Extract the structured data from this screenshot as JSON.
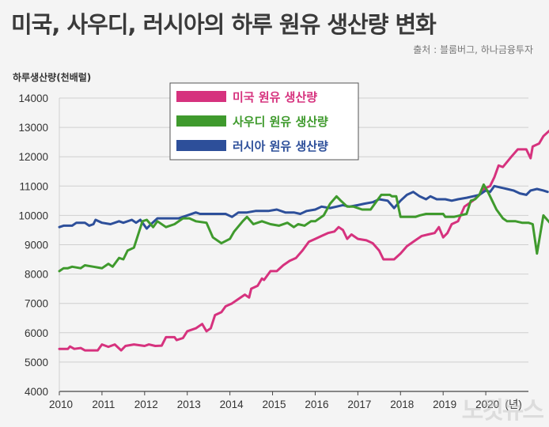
{
  "title": "미국, 사우디, 러시아의 하루 원유 생산량 변화",
  "source": "출처 : 블룸버그, 하나금융투자",
  "watermark": "노컷뉴스",
  "colors": {
    "us": "#d6327e",
    "saudi": "#3f9a2d",
    "russia": "#2d4f9a"
  },
  "chart_data": {
    "type": "line",
    "title": "미국, 사우디, 러시아의 하루 원유 생산량 변화",
    "ylabel": "하루생산량(천배럴)",
    "xlabel": "",
    "x_unit": "(년)",
    "ylim": [
      4000,
      14000
    ],
    "xlim": [
      2010,
      2021
    ],
    "yticks": [
      4000,
      5000,
      6000,
      7000,
      8000,
      9000,
      10000,
      11000,
      12000,
      13000,
      14000
    ],
    "xticks": [
      2010,
      2011,
      2012,
      2013,
      2014,
      2015,
      2016,
      2017,
      2018,
      2019,
      2020
    ],
    "legend": "top-left",
    "grid": "horizontal",
    "series": [
      {
        "name": "미국 원유 생산량",
        "color": "#d6327e",
        "points": [
          [
            2010.0,
            5450
          ],
          [
            2010.2,
            5450
          ],
          [
            2010.25,
            5530
          ],
          [
            2010.35,
            5450
          ],
          [
            2010.5,
            5480
          ],
          [
            2010.6,
            5400
          ],
          [
            2010.9,
            5400
          ],
          [
            2011.0,
            5600
          ],
          [
            2011.15,
            5520
          ],
          [
            2011.3,
            5600
          ],
          [
            2011.45,
            5400
          ],
          [
            2011.55,
            5550
          ],
          [
            2011.75,
            5600
          ],
          [
            2012.0,
            5550
          ],
          [
            2012.1,
            5600
          ],
          [
            2012.25,
            5550
          ],
          [
            2012.4,
            5560
          ],
          [
            2012.5,
            5850
          ],
          [
            2012.7,
            5850
          ],
          [
            2012.75,
            5750
          ],
          [
            2012.9,
            5820
          ],
          [
            2013.0,
            6050
          ],
          [
            2013.2,
            6150
          ],
          [
            2013.35,
            6300
          ],
          [
            2013.45,
            6050
          ],
          [
            2013.55,
            6150
          ],
          [
            2013.65,
            6600
          ],
          [
            2013.8,
            6700
          ],
          [
            2013.9,
            6900
          ],
          [
            2014.05,
            7000
          ],
          [
            2014.2,
            7150
          ],
          [
            2014.35,
            7300
          ],
          [
            2014.45,
            7200
          ],
          [
            2014.5,
            7500
          ],
          [
            2014.65,
            7600
          ],
          [
            2014.75,
            7850
          ],
          [
            2014.8,
            7800
          ],
          [
            2014.95,
            8100
          ],
          [
            2015.1,
            8100
          ],
          [
            2015.25,
            8300
          ],
          [
            2015.4,
            8450
          ],
          [
            2015.55,
            8550
          ],
          [
            2015.7,
            8800
          ],
          [
            2015.85,
            9100
          ],
          [
            2016.0,
            9200
          ],
          [
            2016.15,
            9300
          ],
          [
            2016.3,
            9400
          ],
          [
            2016.45,
            9450
          ],
          [
            2016.55,
            9600
          ],
          [
            2016.65,
            9500
          ],
          [
            2016.75,
            9200
          ],
          [
            2016.85,
            9350
          ],
          [
            2017.0,
            9200
          ],
          [
            2017.2,
            9150
          ],
          [
            2017.35,
            9050
          ],
          [
            2017.5,
            8800
          ],
          [
            2017.6,
            8500
          ],
          [
            2017.85,
            8500
          ],
          [
            2018.0,
            8700
          ],
          [
            2018.15,
            8950
          ],
          [
            2018.35,
            9150
          ],
          [
            2018.5,
            9300
          ],
          [
            2018.65,
            9350
          ],
          [
            2018.8,
            9400
          ],
          [
            2018.9,
            9600
          ],
          [
            2019.0,
            9250
          ],
          [
            2019.1,
            9400
          ],
          [
            2019.2,
            9700
          ],
          [
            2019.35,
            9800
          ],
          [
            2019.5,
            10300
          ],
          [
            2019.7,
            10500
          ],
          [
            2019.85,
            10700
          ],
          [
            2019.95,
            10900
          ],
          [
            2020.1,
            11000
          ],
          [
            2020.2,
            11300
          ],
          [
            2020.3,
            11700
          ],
          [
            2020.4,
            11650
          ],
          [
            2020.6,
            12000
          ],
          [
            2020.75,
            12250
          ],
          [
            2020.95,
            12250
          ],
          [
            2021.05,
            11950
          ],
          [
            2021.1,
            12350
          ],
          [
            2021.25,
            12450
          ],
          [
            2021.35,
            12700
          ],
          [
            2021.5,
            12900
          ],
          [
            2021.7,
            13050
          ]
        ]
      },
      {
        "name": "사우디 원유 생산량",
        "color": "#3f9a2d",
        "points": [
          [
            2010.0,
            8100
          ],
          [
            2010.1,
            8200
          ],
          [
            2010.2,
            8200
          ],
          [
            2010.3,
            8250
          ],
          [
            2010.5,
            8200
          ],
          [
            2010.6,
            8300
          ],
          [
            2010.8,
            8250
          ],
          [
            2011.0,
            8200
          ],
          [
            2011.15,
            8350
          ],
          [
            2011.25,
            8250
          ],
          [
            2011.4,
            8550
          ],
          [
            2011.5,
            8500
          ],
          [
            2011.6,
            8800
          ],
          [
            2011.75,
            8900
          ],
          [
            2011.95,
            9800
          ],
          [
            2012.05,
            9850
          ],
          [
            2012.2,
            9600
          ],
          [
            2012.3,
            9800
          ],
          [
            2012.5,
            9600
          ],
          [
            2012.7,
            9700
          ],
          [
            2012.9,
            9900
          ],
          [
            2013.05,
            9900
          ],
          [
            2013.2,
            9800
          ],
          [
            2013.45,
            9750
          ],
          [
            2013.6,
            9250
          ],
          [
            2013.8,
            9050
          ],
          [
            2014.0,
            9200
          ],
          [
            2014.1,
            9450
          ],
          [
            2014.3,
            9800
          ],
          [
            2014.4,
            9950
          ],
          [
            2014.55,
            9700
          ],
          [
            2014.75,
            9800
          ],
          [
            2014.95,
            9700
          ],
          [
            2015.15,
            9650
          ],
          [
            2015.35,
            9750
          ],
          [
            2015.5,
            9600
          ],
          [
            2015.6,
            9700
          ],
          [
            2015.75,
            9650
          ],
          [
            2015.9,
            9800
          ],
          [
            2016.0,
            9800
          ],
          [
            2016.2,
            10000
          ],
          [
            2016.35,
            10400
          ],
          [
            2016.5,
            10650
          ],
          [
            2016.6,
            10500
          ],
          [
            2016.75,
            10300
          ],
          [
            2016.9,
            10300
          ],
          [
            2017.1,
            10200
          ],
          [
            2017.3,
            10200
          ],
          [
            2017.45,
            10500
          ],
          [
            2017.55,
            10700
          ],
          [
            2017.75,
            10700
          ],
          [
            2017.8,
            10650
          ],
          [
            2017.9,
            10650
          ],
          [
            2018.0,
            9950
          ],
          [
            2018.2,
            9950
          ],
          [
            2018.35,
            9950
          ],
          [
            2018.45,
            10000
          ],
          [
            2018.6,
            10050
          ],
          [
            2018.8,
            10050
          ],
          [
            2019.0,
            10050
          ],
          [
            2019.05,
            9950
          ],
          [
            2019.25,
            9950
          ],
          [
            2019.4,
            10000
          ],
          [
            2019.55,
            10050
          ],
          [
            2019.65,
            10500
          ],
          [
            2019.75,
            10550
          ],
          [
            2019.85,
            10700
          ],
          [
            2019.95,
            11050
          ],
          [
            2020.05,
            10800
          ],
          [
            2020.15,
            10500
          ],
          [
            2020.25,
            10200
          ],
          [
            2020.4,
            9900
          ],
          [
            2020.5,
            9800
          ],
          [
            2020.7,
            9800
          ],
          [
            2020.85,
            9750
          ],
          [
            2021.0,
            9750
          ],
          [
            2021.1,
            9700
          ],
          [
            2021.2,
            8700
          ],
          [
            2021.35,
            10000
          ],
          [
            2021.5,
            9750
          ],
          [
            2021.7,
            9750
          ]
        ]
      },
      {
        "name": "러시아 원유 생산량",
        "color": "#2d4f9a",
        "points": [
          [
            2010.0,
            9600
          ],
          [
            2010.1,
            9650
          ],
          [
            2010.3,
            9650
          ],
          [
            2010.4,
            9750
          ],
          [
            2010.6,
            9750
          ],
          [
            2010.7,
            9650
          ],
          [
            2010.8,
            9700
          ],
          [
            2010.85,
            9850
          ],
          [
            2011.0,
            9750
          ],
          [
            2011.2,
            9700
          ],
          [
            2011.4,
            9800
          ],
          [
            2011.5,
            9750
          ],
          [
            2011.7,
            9850
          ],
          [
            2011.8,
            9750
          ],
          [
            2011.9,
            9850
          ],
          [
            2012.05,
            9550
          ],
          [
            2012.15,
            9700
          ],
          [
            2012.3,
            9900
          ],
          [
            2012.6,
            9900
          ],
          [
            2012.8,
            9900
          ],
          [
            2013.0,
            10000
          ],
          [
            2013.2,
            10100
          ],
          [
            2013.3,
            10050
          ],
          [
            2013.6,
            10050
          ],
          [
            2013.9,
            10050
          ],
          [
            2014.05,
            9950
          ],
          [
            2014.2,
            10100
          ],
          [
            2014.4,
            10100
          ],
          [
            2014.6,
            10150
          ],
          [
            2014.75,
            10150
          ],
          [
            2014.9,
            10150
          ],
          [
            2015.1,
            10200
          ],
          [
            2015.3,
            10100
          ],
          [
            2015.5,
            10100
          ],
          [
            2015.65,
            10050
          ],
          [
            2015.8,
            10150
          ],
          [
            2016.0,
            10200
          ],
          [
            2016.15,
            10300
          ],
          [
            2016.35,
            10250
          ],
          [
            2016.5,
            10300
          ],
          [
            2016.65,
            10350
          ],
          [
            2016.8,
            10300
          ],
          [
            2017.0,
            10350
          ],
          [
            2017.15,
            10400
          ],
          [
            2017.35,
            10450
          ],
          [
            2017.5,
            10550
          ],
          [
            2017.7,
            10500
          ],
          [
            2017.85,
            10250
          ],
          [
            2018.0,
            10500
          ],
          [
            2018.15,
            10700
          ],
          [
            2018.3,
            10800
          ],
          [
            2018.45,
            10650
          ],
          [
            2018.6,
            10550
          ],
          [
            2018.7,
            10650
          ],
          [
            2018.85,
            10550
          ],
          [
            2019.05,
            10550
          ],
          [
            2019.2,
            10500
          ],
          [
            2019.35,
            10550
          ],
          [
            2019.55,
            10600
          ],
          [
            2019.7,
            10650
          ],
          [
            2019.85,
            10700
          ],
          [
            2020.0,
            10850
          ],
          [
            2020.1,
            10800
          ],
          [
            2020.2,
            11000
          ],
          [
            2020.35,
            10950
          ],
          [
            2020.5,
            10900
          ],
          [
            2020.65,
            10850
          ],
          [
            2020.8,
            10750
          ],
          [
            2020.95,
            10700
          ],
          [
            2021.05,
            10850
          ],
          [
            2021.2,
            10900
          ],
          [
            2021.35,
            10850
          ],
          [
            2021.45,
            10800
          ]
        ]
      }
    ]
  }
}
